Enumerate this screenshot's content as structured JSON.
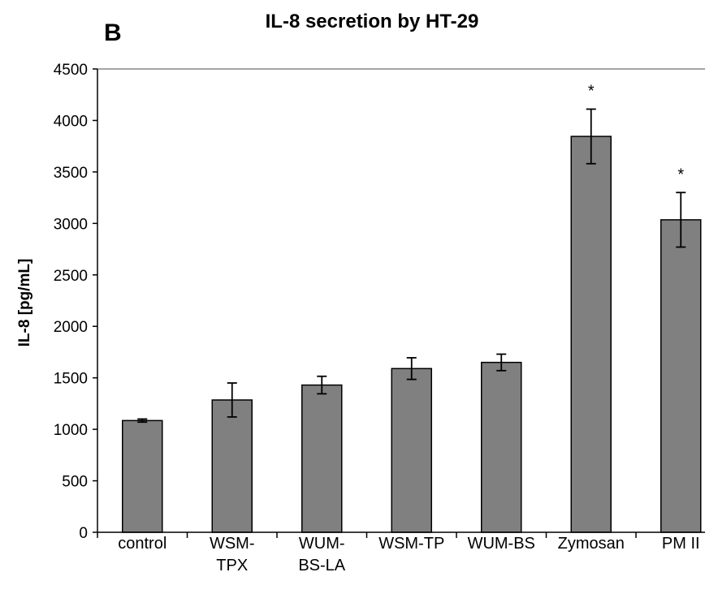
{
  "panel_letter": "B",
  "chart_data": {
    "type": "bar",
    "title": "IL-8 secretion by HT-29",
    "xlabel": "",
    "ylabel": "IL-8 [pg/mL]",
    "ylim": [
      0,
      4500
    ],
    "yticks": [
      0,
      500,
      1000,
      1500,
      2000,
      2500,
      3000,
      3500,
      4000,
      4500
    ],
    "grid": false,
    "legend": "none",
    "bar_color": "#808080",
    "categories": [
      [
        "control"
      ],
      [
        "WSM-",
        "TPX"
      ],
      [
        "WUM-",
        "BS-LA"
      ],
      [
        "WSM-TP"
      ],
      [
        "WUM-BS"
      ],
      [
        "Zymosan"
      ],
      [
        "PM II"
      ]
    ],
    "values": [
      1085,
      1285,
      1430,
      1590,
      1650,
      3845,
      3035
    ],
    "errors": [
      15,
      165,
      85,
      105,
      80,
      265,
      265
    ],
    "annotations": [
      "",
      "",
      "",
      "",
      "",
      "*",
      "*"
    ]
  }
}
